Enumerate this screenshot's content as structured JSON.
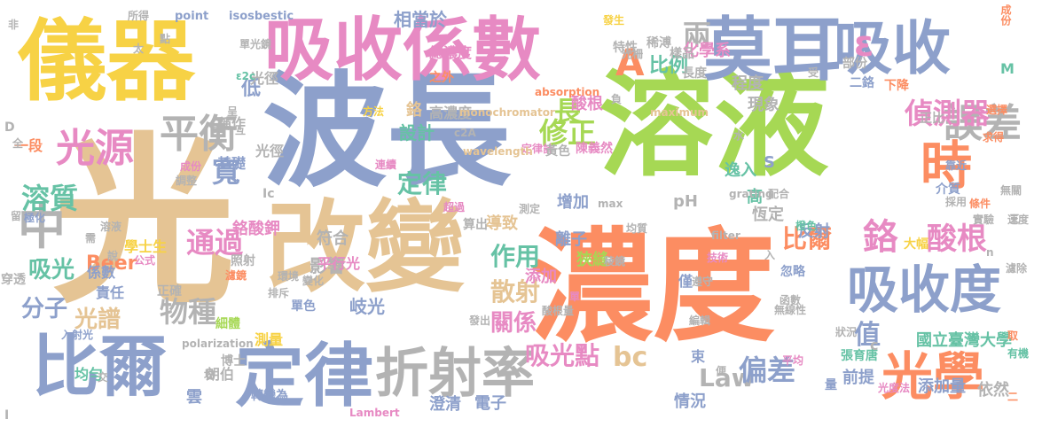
{
  "colors": {
    "yellow": "#f7d245",
    "blue": "#8da0cb",
    "pink": "#e78ac3",
    "green": "#a6d854",
    "orange": "#fc8d62",
    "teal": "#66c2a5",
    "tan": "#e5c494",
    "gray": "#b3b3b3"
  },
  "words": [
    {
      "text": "濃度",
      "color": "#fc8d62"
    },
    {
      "text": "溶液",
      "color": "#a6d854"
    },
    {
      "text": "波長",
      "color": "#8da0cb"
    },
    {
      "text": "光",
      "color": "#e5c494"
    },
    {
      "text": "儀器",
      "color": "#f7d245"
    },
    {
      "text": "改變",
      "color": "#e5c494"
    },
    {
      "text": "吸收係數",
      "color": "#e78ac3"
    },
    {
      "text": "莫耳",
      "color": "#8da0cb"
    },
    {
      "text": "吸收",
      "color": "#8da0cb"
    },
    {
      "text": "比爾",
      "color": "#8da0cb"
    },
    {
      "text": "定律",
      "color": "#8da0cb"
    },
    {
      "text": "折射率",
      "color": "#b3b3b3"
    },
    {
      "text": "吸收度",
      "color": "#8da0cb"
    },
    {
      "text": "光學",
      "color": "#fc8d62"
    },
    {
      "text": "時",
      "color": "#fc8d62"
    },
    {
      "text": "誤差",
      "color": "#b3b3b3"
    },
    {
      "text": "光源",
      "color": "#e78ac3"
    },
    {
      "text": "平衡",
      "color": "#b3b3b3"
    },
    {
      "text": "中",
      "color": "#b3b3b3"
    },
    {
      "text": "A",
      "color": "#fc8d62"
    },
    {
      "text": "ε",
      "color": "#e78ac3"
    },
    {
      "text": "兩",
      "color": "#b3b3b3"
    },
    {
      "text": "鉻",
      "color": "#e78ac3"
    },
    {
      "text": "酸根",
      "color": "#e78ac3"
    },
    {
      "text": "偵測器",
      "color": "#e78ac3"
    },
    {
      "text": "溶質",
      "color": "#66c2a5"
    },
    {
      "text": "分子",
      "color": "#8da0cb"
    },
    {
      "text": "吸光",
      "color": "#66c2a5"
    },
    {
      "text": "光譜",
      "color": "#e5c494"
    },
    {
      "text": "物種",
      "color": "#b3b3b3"
    },
    {
      "text": "通過",
      "color": "#e78ac3"
    },
    {
      "text": "寬",
      "color": "#8da0cb"
    },
    {
      "text": "修正",
      "color": "#a6d854"
    },
    {
      "text": "散射",
      "color": "#e5c494"
    },
    {
      "text": "作用",
      "color": "#66c2a5"
    },
    {
      "text": "關係",
      "color": "#e78ac3"
    },
    {
      "text": "吸光點",
      "color": "#e78ac3"
    },
    {
      "text": "bc",
      "color": "#e5c494"
    },
    {
      "text": "Law",
      "color": "#b3b3b3"
    },
    {
      "text": "偏差",
      "color": "#8da0cb"
    },
    {
      "text": "比爾",
      "color": "#fc8d62"
    },
    {
      "text": "值",
      "color": "#8da0cb"
    },
    {
      "text": "長",
      "color": "#a6d854"
    },
    {
      "text": "定律",
      "color": "#66c2a5"
    },
    {
      "text": "光徑",
      "color": "#b3b3b3"
    },
    {
      "text": "影響",
      "color": "#b3b3b3"
    },
    {
      "text": "岐光",
      "color": "#8da0cb"
    },
    {
      "text": "設計",
      "color": "#66c2a5"
    },
    {
      "text": "比例",
      "color": "#66c2a5"
    },
    {
      "text": "化學系",
      "color": "#e78ac3"
    },
    {
      "text": "現象",
      "color": "#b3b3b3"
    },
    {
      "text": "酸根",
      "color": "#e78ac3"
    },
    {
      "text": "程度",
      "color": "#b3b3b3"
    },
    {
      "text": "逸入",
      "color": "#66c2a5"
    },
    {
      "text": "高",
      "color": "#66c2a5"
    },
    {
      "text": "恆定",
      "color": "#b3b3b3"
    },
    {
      "text": "pH",
      "color": "#b3b3b3"
    },
    {
      "text": "增加",
      "color": "#8da0cb"
    },
    {
      "text": "離子",
      "color": "#8da0cb"
    },
    {
      "text": "狹縫",
      "color": "#a6d854"
    },
    {
      "text": "添加",
      "color": "#e78ac3"
    },
    {
      "text": "導致",
      "color": "#e5c494"
    },
    {
      "text": "符合",
      "color": "#b3b3b3"
    },
    {
      "text": "反射",
      "color": "#8da0cb"
    },
    {
      "text": "Beer",
      "color": "#fc8d62"
    },
    {
      "text": "係數",
      "color": "#8da0cb"
    },
    {
      "text": "鉻酸鉀",
      "color": "#e78ac3"
    },
    {
      "text": "平行光",
      "color": "#e78ac3"
    },
    {
      "text": "國立臺灣大學",
      "color": "#66c2a5"
    },
    {
      "text": "前提",
      "color": "#8da0cb"
    },
    {
      "text": "添加量",
      "color": "#8da0cb"
    },
    {
      "text": "依然",
      "color": "#b3b3b3"
    },
    {
      "text": "情況",
      "color": "#8da0cb"
    },
    {
      "text": "電子",
      "color": "#8da0cb"
    },
    {
      "text": "澄清",
      "color": "#8da0cb"
    },
    {
      "text": "Lambert",
      "color": "#e78ac3"
    },
    {
      "text": "雲",
      "color": "#8da0cb"
    },
    {
      "text": "朗伯",
      "color": "#b3b3b3"
    },
    {
      "text": "轉變為",
      "color": "#8da0cb"
    },
    {
      "text": "均勻",
      "color": "#66c2a5"
    },
    {
      "text": "博士",
      "color": "#b3b3b3"
    },
    {
      "text": "測量",
      "color": "#f7d245"
    },
    {
      "text": "polarization",
      "color": "#b3b3b3"
    },
    {
      "text": "入射光",
      "color": "#8da0cb"
    },
    {
      "text": "細體",
      "color": "#a6d854"
    },
    {
      "text": "單色",
      "color": "#8da0cb"
    },
    {
      "text": "正確",
      "color": "#b3b3b3"
    },
    {
      "text": "責任",
      "color": "#8da0cb"
    },
    {
      "text": "照射",
      "color": "#b3b3b3"
    },
    {
      "text": "穿透",
      "color": "#b3b3b3"
    },
    {
      "text": "學士生",
      "color": "#f7d245"
    },
    {
      "text": "基礎",
      "color": "#8da0cb"
    },
    {
      "text": "一段",
      "color": "#fc8d62"
    },
    {
      "text": "稱作",
      "color": "#b3b3b3"
    },
    {
      "text": "低",
      "color": "#8da0cb"
    },
    {
      "text": "光徑",
      "color": "#b3b3b3"
    },
    {
      "text": "鉻",
      "color": "#e5c494"
    },
    {
      "text": "高濃度",
      "color": "#b3b3b3"
    },
    {
      "text": "之外",
      "color": "#fc8d62"
    },
    {
      "text": "總濃度",
      "color": "#e78ac3"
    },
    {
      "text": "相當於",
      "color": "#8da0cb"
    },
    {
      "text": "point",
      "color": "#8da0cb"
    },
    {
      "text": "isosbestic",
      "color": "#8da0cb"
    },
    {
      "text": "所得",
      "color": "#b3b3b3"
    },
    {
      "text": "定律計",
      "color": "#e78ac3"
    },
    {
      "text": "monochromator",
      "color": "#e5c494"
    },
    {
      "text": "wavelength",
      "color": "#e5c494"
    },
    {
      "text": "absorption",
      "color": "#fc8d62"
    },
    {
      "text": "maximum",
      "color": "#e5c494"
    },
    {
      "text": "陳義然",
      "color": "#e78ac3"
    },
    {
      "text": "黃色",
      "color": "#b3b3b3"
    },
    {
      "text": "稀溥",
      "color": "#b3b3b3"
    },
    {
      "text": "樣品",
      "color": "#b3b3b3"
    },
    {
      "text": "長度",
      "color": "#b3b3b3"
    },
    {
      "text": "特性",
      "color": "#b3b3b3"
    },
    {
      "text": "部份",
      "color": "#b3b3b3"
    },
    {
      "text": "二鉻",
      "color": "#8da0cb"
    },
    {
      "text": "下降",
      "color": "#fc8d62"
    },
    {
      "text": "成份",
      "color": "#fc8d62"
    },
    {
      "text": "正比",
      "color": "#b3b3b3"
    },
    {
      "text": "選擇",
      "color": "#fc8d62"
    },
    {
      "text": "求得",
      "color": "#fc8d62"
    },
    {
      "text": "靠近",
      "color": "#8da0cb"
    },
    {
      "text": "介質",
      "color": "#8da0cb"
    },
    {
      "text": "條件",
      "color": "#fc8d62"
    },
    {
      "text": "橙色",
      "color": "#66c2a5"
    },
    {
      "text": "大幅",
      "color": "#f7d245"
    },
    {
      "text": "忽略",
      "color": "#8da0cb"
    },
    {
      "text": "遵守",
      "color": "#b3b3b3"
    },
    {
      "text": "張育唐",
      "color": "#66c2a5"
    },
    {
      "text": "編輯",
      "color": "#b3b3b3"
    },
    {
      "text": "狀況",
      "color": "#b3b3b3"
    },
    {
      "text": "函數",
      "color": "#b3b3b3"
    },
    {
      "text": "無線性",
      "color": "#b3b3b3"
    },
    {
      "text": "均質",
      "color": "#b3b3b3"
    },
    {
      "text": "稜鏡",
      "color": "#b3b3b3"
    },
    {
      "text": "僅",
      "color": "#8da0cb"
    },
    {
      "text": "束",
      "color": "#8da0cb"
    },
    {
      "text": "算出",
      "color": "#b3b3b3"
    },
    {
      "text": "酸根量",
      "color": "#b3b3b3"
    },
    {
      "text": "發出",
      "color": "#b3b3b3"
    },
    {
      "text": "量",
      "color": "#8da0cb"
    },
    {
      "text": "光度法",
      "color": "#e78ac3"
    },
    {
      "text": "M",
      "color": "#66c2a5"
    },
    {
      "text": "S",
      "color": "#8da0cb"
    },
    {
      "text": "D",
      "color": "#b3b3b3"
    },
    {
      "text": "c",
      "color": "#b3b3b3"
    },
    {
      "text": "Ic",
      "color": "#b3b3b3"
    },
    {
      "text": "I",
      "color": "#b3b3b3"
    },
    {
      "text": "c1",
      "color": "#b3b3b3"
    },
    {
      "text": "ε2c",
      "color": "#66c2a5"
    },
    {
      "text": "c2A",
      "color": "#b3b3b3"
    },
    {
      "text": "max",
      "color": "#b3b3b3"
    },
    {
      "text": "grating",
      "color": "#b3b3b3"
    },
    {
      "text": "filter",
      "color": "#b3b3b3"
    },
    {
      "text": "技術",
      "color": "#e78ac3"
    },
    {
      "text": "配合",
      "color": "#b3b3b3"
    },
    {
      "text": "採用",
      "color": "#b3b3b3"
    },
    {
      "text": "實驗",
      "color": "#b3b3b3"
    },
    {
      "text": "無關",
      "color": "#b3b3b3"
    },
    {
      "text": "速度",
      "color": "#b3b3b3"
    },
    {
      "text": "濾除",
      "color": "#b3b3b3"
    },
    {
      "text": "取",
      "color": "#fc8d62"
    },
    {
      "text": "有機",
      "color": "#66c2a5"
    },
    {
      "text": "平均",
      "color": "#e78ac3"
    },
    {
      "text": "水",
      "color": "#b3b3b3"
    },
    {
      "text": "受",
      "color": "#b3b3b3"
    },
    {
      "text": "發生",
      "color": "#f7d245"
    },
    {
      "text": "光柵",
      "color": "#b3b3b3"
    },
    {
      "text": "單光鏡",
      "color": "#b3b3b3"
    },
    {
      "text": "方法",
      "color": "#f7d245"
    },
    {
      "text": "測定",
      "color": "#b3b3b3"
    },
    {
      "text": "超過",
      "color": "#e78ac3"
    },
    {
      "text": "連續",
      "color": "#e78ac3"
    },
    {
      "text": "成份",
      "color": "#e78ac3"
    },
    {
      "text": "調整",
      "color": "#b3b3b3"
    },
    {
      "text": "留下",
      "color": "#b3b3b3"
    },
    {
      "text": "極化",
      "color": "#8da0cb"
    },
    {
      "text": "溶液",
      "color": "#b3b3b3"
    },
    {
      "text": "說",
      "color": "#b3b3b3"
    },
    {
      "text": "公式",
      "color": "#e78ac3"
    },
    {
      "text": "濾鏡",
      "color": "#fc8d62"
    },
    {
      "text": "排斥",
      "color": "#b3b3b3"
    },
    {
      "text": "變化",
      "color": "#b3b3b3"
    },
    {
      "text": "環境",
      "color": "#b3b3b3"
    },
    {
      "text": "非",
      "color": "#b3b3b3"
    },
    {
      "text": "點",
      "color": "#b3b3b3"
    },
    {
      "text": "太",
      "color": "#b3b3b3"
    },
    {
      "text": "全",
      "color": "#b3b3b3"
    },
    {
      "text": "呈",
      "color": "#b3b3b3"
    },
    {
      "text": "互",
      "color": "#b3b3b3"
    },
    {
      "text": "單",
      "color": "#e78ac3"
    },
    {
      "text": "均",
      "color": "#b3b3b3"
    },
    {
      "text": "交",
      "color": "#b3b3b3"
    },
    {
      "text": "入",
      "color": "#b3b3b3"
    },
    {
      "text": "n",
      "color": "#b3b3b3"
    },
    {
      "text": "需",
      "color": "#b3b3b3"
    },
    {
      "text": "便",
      "color": "#b3b3b3"
    },
    {
      "text": "負",
      "color": "#b3b3b3"
    },
    {
      "text": "三",
      "color": "#b3b3b3"
    },
    {
      "text": "二",
      "color": "#fc8d62"
    },
    {
      "text": "銀",
      "color": "#b3b3b3"
    }
  ]
}
